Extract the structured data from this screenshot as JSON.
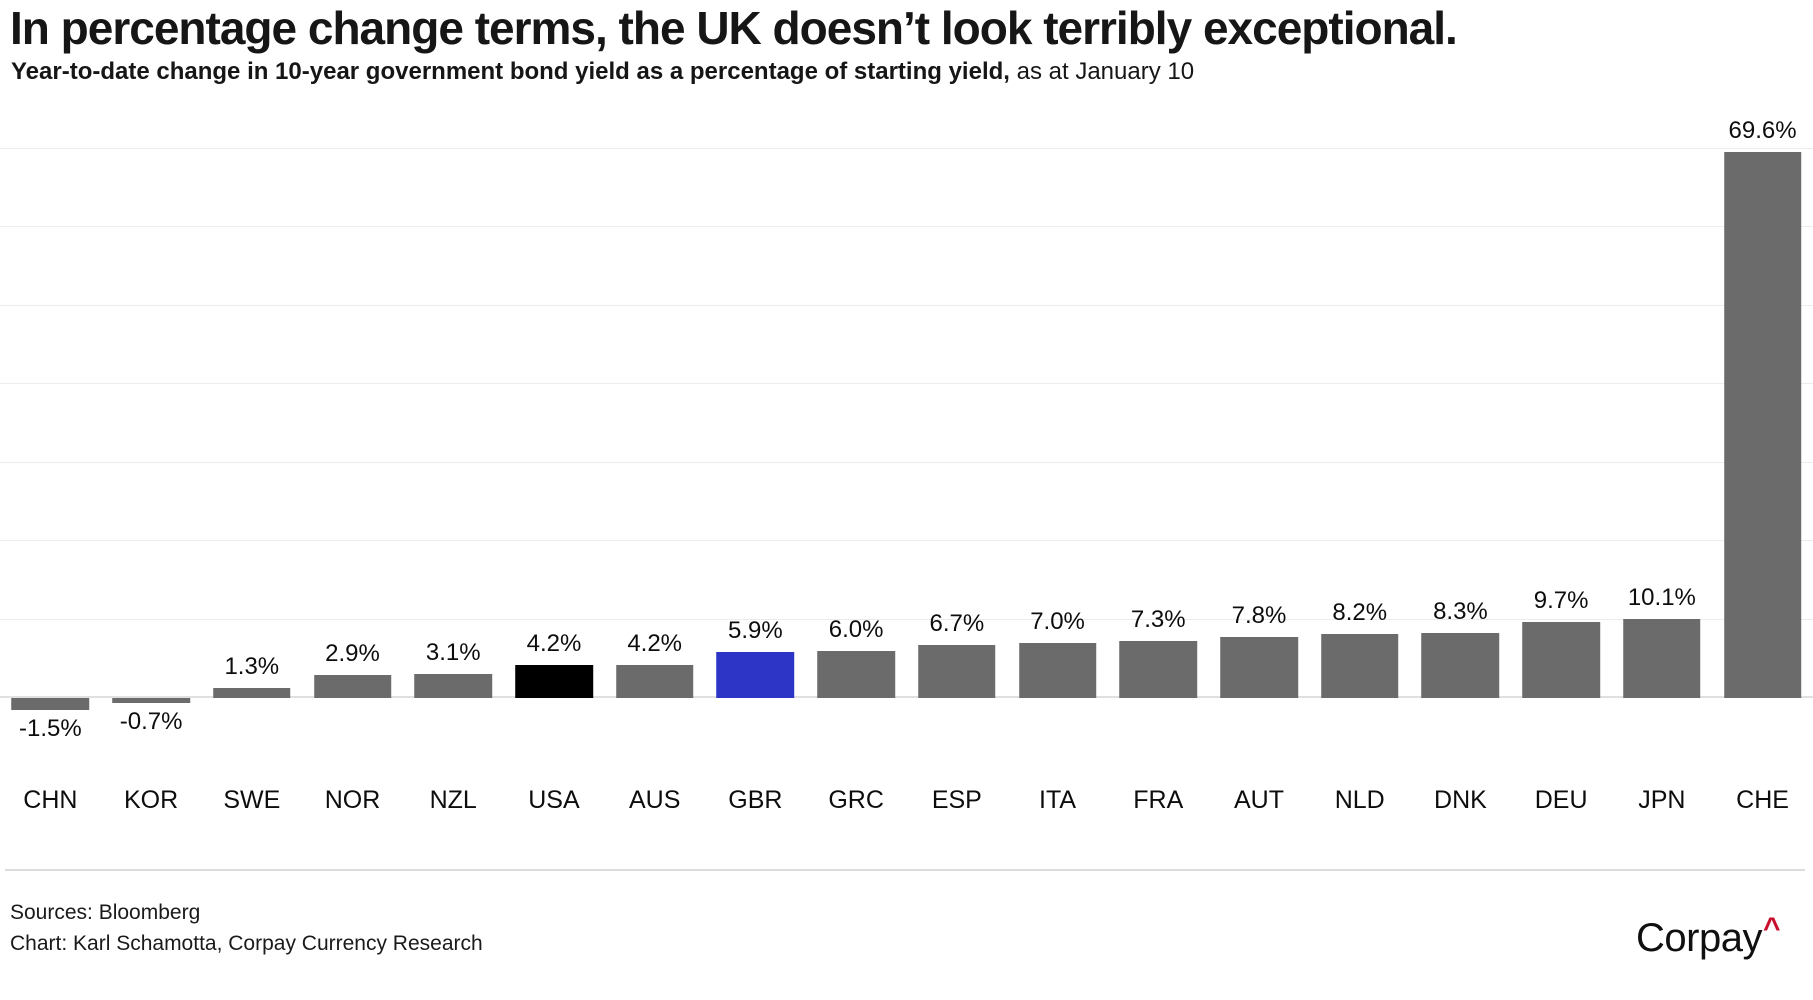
{
  "header": {
    "title": "In percentage change terms, the UK doesn’t look terribly exceptional.",
    "subtitle_bold": "Year-to-date change in 10-year government bond yield as a percentage of starting yield,",
    "subtitle_regular": " as at January 10"
  },
  "chart_data": {
    "type": "bar",
    "title": "In percentage change terms, the UK doesn’t look terribly exceptional.",
    "subtitle": "Year-to-date change in 10-year government bond yield as a percentage of starting yield, as at January 10",
    "xlabel": "",
    "ylabel": "",
    "categories": [
      "CHN",
      "KOR",
      "SWE",
      "NOR",
      "NZL",
      "USA",
      "AUS",
      "GBR",
      "GRC",
      "ESP",
      "ITA",
      "FRA",
      "AUT",
      "NLD",
      "DNK",
      "DEU",
      "JPN",
      "CHE"
    ],
    "values": [
      -1.5,
      -0.7,
      1.3,
      2.9,
      3.1,
      4.2,
      4.2,
      5.9,
      6.0,
      6.7,
      7.0,
      7.3,
      7.8,
      8.2,
      8.3,
      9.7,
      10.1,
      69.6
    ],
    "value_labels": [
      "-1.5%",
      "-0.7%",
      "1.3%",
      "2.9%",
      "3.1%",
      "4.2%",
      "4.2%",
      "5.9%",
      "6.0%",
      "6.7%",
      "7.0%",
      "7.3%",
      "7.8%",
      "8.2%",
      "8.3%",
      "9.7%",
      "10.1%",
      "69.6%"
    ],
    "colors": [
      "#6B6B6B",
      "#6B6B6B",
      "#6B6B6B",
      "#6B6B6B",
      "#6B6B6B",
      "#000000",
      "#6B6B6B",
      "#2D35C7",
      "#6B6B6B",
      "#6B6B6B",
      "#6B6B6B",
      "#6B6B6B",
      "#6B6B6B",
      "#6B6B6B",
      "#6B6B6B",
      "#6B6B6B",
      "#6B6B6B",
      "#6B6B6B"
    ],
    "default_bar_color": "#6B6B6B",
    "highlight_colors": {
      "USA": "#000000",
      "GBR": "#2D35C7"
    },
    "ylim": [
      -2,
      74
    ],
    "gridline_values": [
      0,
      10,
      20,
      30,
      40,
      50,
      60,
      70
    ],
    "grid": true,
    "legend": "none",
    "value_labels_shown": true
  },
  "footer": {
    "sources": "Sources: Bloomberg",
    "credit": "Chart: Karl Schamotta, Corpay Currency Research",
    "logo_text": "Corpay",
    "logo_caret": "^",
    "logo_caret_color": "#C8102E"
  }
}
